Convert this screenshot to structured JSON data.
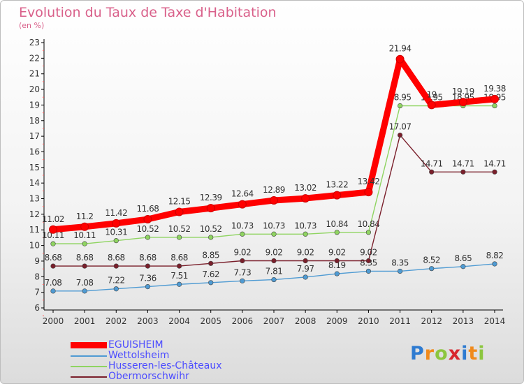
{
  "title": "Evolution du Taux de Taxe d'Habitation",
  "unit_label": "(en %)",
  "logo": "Proxiti",
  "colors": {
    "text": "#d9608a",
    "legend_text": "#4c4cff",
    "axis": "#000000"
  },
  "chart_data": {
    "type": "line",
    "title": "Evolution du Taux de Taxe d'Habitation",
    "ylabel": "(en %)",
    "xlabel": "",
    "x": [
      "2000",
      "2001",
      "2002",
      "2003",
      "2004",
      "2005",
      "2006",
      "2007",
      "2008",
      "2009",
      "2010",
      "2011",
      "2012",
      "2013",
      "2014"
    ],
    "ylim": [
      6,
      23
    ],
    "yticks": [
      6,
      7,
      8,
      9,
      10,
      11,
      12,
      13,
      14,
      15,
      16,
      17,
      18,
      19,
      20,
      21,
      22,
      23
    ],
    "grid": false,
    "legend_position": "bottom-left",
    "series": [
      {
        "name": "EGUISHEIM",
        "color": "#ff0000",
        "values": [
          11.02,
          11.2,
          11.42,
          11.68,
          12.15,
          12.39,
          12.64,
          12.89,
          13.02,
          13.22,
          13.42,
          21.94,
          19,
          19.19,
          19.38
        ],
        "labels": [
          "11.02",
          "11.2",
          "11.42",
          "11.68",
          "12.15",
          "12.39",
          "12.64",
          "12.89",
          "13.02",
          "13.22",
          "13.42",
          "21.94",
          "19",
          "19.19",
          "19.38"
        ]
      },
      {
        "name": "Wettolsheim",
        "color": "#4f9bd3",
        "values": [
          7.08,
          7.08,
          7.22,
          7.36,
          7.51,
          7.62,
          7.73,
          7.81,
          7.97,
          8.19,
          8.35,
          8.35,
          8.52,
          8.65,
          8.82
        ],
        "labels": [
          "7.08",
          "7.08",
          "7.22",
          "7.36",
          "7.51",
          "7.62",
          "7.73",
          "7.81",
          "7.97",
          "8.19",
          "8.35",
          "8.35",
          "8.52",
          "8.65",
          "8.82"
        ]
      },
      {
        "name": "Husseren-les-Châteaux",
        "color": "#8fd461",
        "values": [
          10.11,
          10.11,
          10.31,
          10.52,
          10.52,
          10.52,
          10.73,
          10.73,
          10.73,
          10.84,
          10.84,
          18.95,
          18.95,
          18.95,
          18.95
        ],
        "labels": [
          "10.11",
          "10.11",
          "10.31",
          "10.52",
          "10.52",
          "10.52",
          "10.73",
          "10.73",
          "10.73",
          "10.84",
          "10.84",
          "18.95",
          "18.95",
          "18.95",
          "18.95"
        ]
      },
      {
        "name": "Obermorschwihr",
        "color": "#7a1f2b",
        "values": [
          8.68,
          8.68,
          8.68,
          8.68,
          8.68,
          8.85,
          9.02,
          9.02,
          9.02,
          9.02,
          9.02,
          17.07,
          14.71,
          14.71,
          14.71
        ],
        "labels": [
          "8.68",
          "8.68",
          "8.68",
          "8.68",
          "8.68",
          "8.85",
          "9.02",
          "9.02",
          "9.02",
          "9.02",
          "9.02",
          "17.07",
          "14.71",
          "14.71",
          "14.71"
        ]
      }
    ]
  }
}
